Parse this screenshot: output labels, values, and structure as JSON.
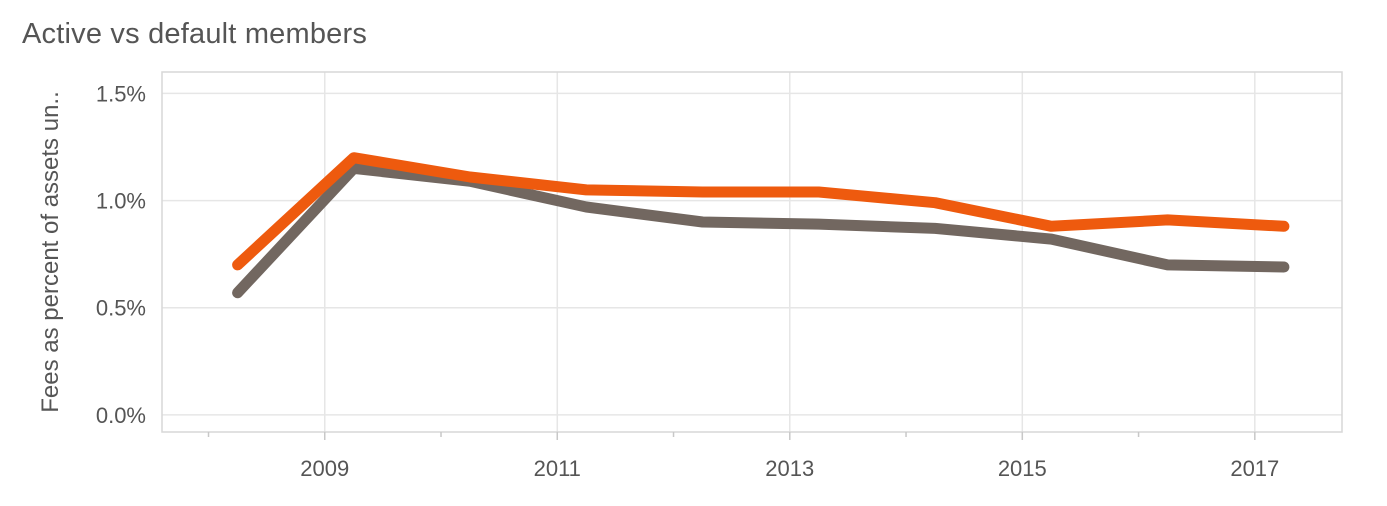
{
  "chart_data": {
    "type": "line",
    "title": "Active vs default members",
    "xlabel": "",
    "ylabel": "Fees as percent of assets un..",
    "x": [
      2008.25,
      2009.25,
      2010.25,
      2011.25,
      2012.25,
      2013.25,
      2014.25,
      2015.25,
      2016.25,
      2017.25
    ],
    "xticks": [
      2009,
      2011,
      2013,
      2015,
      2017
    ],
    "xtick_labels": [
      "2009",
      "2011",
      "2013",
      "2015",
      "2017"
    ],
    "yticks": [
      0.0,
      0.5,
      1.0,
      1.5
    ],
    "ytick_labels": [
      "0.0%",
      "0.5%",
      "1.0%",
      "1.5%"
    ],
    "xlim": [
      2007.6,
      2017.75
    ],
    "ylim": [
      -0.08,
      1.6
    ],
    "grid": true,
    "series": [
      {
        "color": "#ee5a0e",
        "values": [
          0.7,
          1.2,
          1.11,
          1.05,
          1.04,
          1.04,
          0.99,
          0.88,
          0.91,
          0.88
        ]
      },
      {
        "color": "#726760",
        "values": [
          0.57,
          1.15,
          1.09,
          0.97,
          0.9,
          0.89,
          0.87,
          0.82,
          0.7,
          0.69
        ]
      }
    ]
  }
}
